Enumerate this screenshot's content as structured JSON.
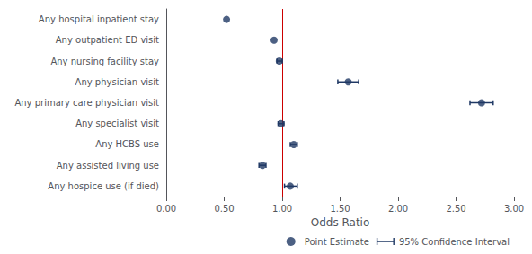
{
  "chart_data": {
    "type": "forest",
    "xlabel": "Odds Ratio",
    "categories": [
      "Any hospital inpatient stay",
      "Any outpatient ED visit",
      "Any nursing facility stay",
      "Any physician visit",
      "Any primary care physician visit",
      "Any specialist visit",
      "Any HCBS use",
      "Any assisted living use",
      "Any hospice use (if died)"
    ],
    "series": [
      {
        "name": "Point Estimate",
        "type": "scatter",
        "marker": "circle",
        "color": "#1f3864",
        "values": [
          0.52,
          0.93,
          0.975,
          1.57,
          2.72,
          0.99,
          1.1,
          0.83,
          1.07
        ]
      },
      {
        "name": "95% Confidence Interval",
        "type": "errorbar",
        "color": "#1f3864",
        "ci_lower": [
          0.52,
          0.93,
          0.955,
          1.48,
          2.62,
          0.965,
          1.07,
          0.8,
          1.02
        ],
        "ci_upper": [
          0.52,
          0.93,
          1.0,
          1.66,
          2.82,
          1.015,
          1.13,
          0.86,
          1.13
        ]
      }
    ],
    "reference_line": {
      "value": 1.0,
      "color": "#cc0000"
    },
    "xlim": [
      0.0,
      3.0
    ],
    "xticks": [
      {
        "value": 0.0,
        "label": "0.00"
      },
      {
        "value": 0.5,
        "label": "0.50"
      },
      {
        "value": 1.0,
        "label": "1.00"
      },
      {
        "value": 1.5,
        "label": "1.50"
      },
      {
        "value": 2.0,
        "label": "2.00"
      },
      {
        "value": 2.5,
        "label": "2.50"
      },
      {
        "value": 3.0,
        "label": "3.00"
      }
    ],
    "grid": false,
    "legend": "lower right"
  }
}
